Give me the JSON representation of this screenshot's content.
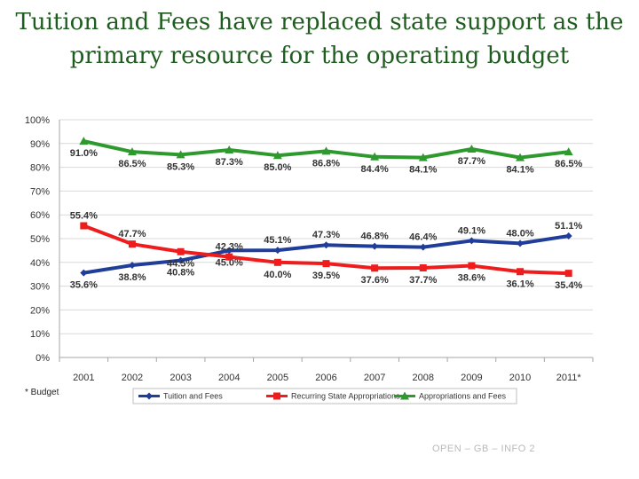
{
  "slide": {
    "title_line1": "Tuition and Fees have replaced state support as the",
    "title_line2": "primary resource for the operating budget",
    "footnote": "* Budget",
    "footer": "OPEN – GB – INFO 2"
  },
  "colors": {
    "tuition": "#1f3d99",
    "state": "#ee1c1c",
    "approp": "#2e9a2e",
    "grid": "#d9d9d9",
    "title": "#1f5c1f"
  },
  "chart_data": {
    "type": "line",
    "categories": [
      "2001",
      "2002",
      "2003",
      "2004",
      "2005",
      "2006",
      "2007",
      "2008",
      "2009",
      "2010",
      "2011*"
    ],
    "y_ticks": [
      "0%",
      "10%",
      "20%",
      "30%",
      "40%",
      "50%",
      "60%",
      "70%",
      "80%",
      "90%",
      "100%"
    ],
    "ylim": [
      0,
      100
    ],
    "grid": true,
    "legend_position": "bottom",
    "series": [
      {
        "key": "tuition",
        "name": "Tuition and Fees",
        "marker": "diamond",
        "values": [
          35.6,
          38.8,
          40.8,
          45.0,
          45.1,
          47.3,
          46.8,
          46.4,
          49.1,
          48.0,
          51.1
        ],
        "labels": [
          "35.6%",
          "38.8%",
          "40.8%",
          "45.0%",
          "45.1%",
          "47.3%",
          "46.8%",
          "46.4%",
          "49.1%",
          "48.0%",
          "51.1%"
        ],
        "label_pos": [
          "below",
          "below",
          "below",
          "below",
          "above",
          "above",
          "above",
          "above",
          "above",
          "above",
          "above"
        ]
      },
      {
        "key": "state",
        "name": "Recurring State Appropriations",
        "marker": "square",
        "values": [
          55.4,
          47.7,
          44.5,
          42.3,
          40.0,
          39.5,
          37.6,
          37.7,
          38.6,
          36.1,
          35.4
        ],
        "labels": [
          "55.4%",
          "47.7%",
          "44.5%",
          "42.3%",
          "40.0%",
          "39.5%",
          "37.6%",
          "37.7%",
          "38.6%",
          "36.1%",
          "35.4%"
        ],
        "label_pos": [
          "above",
          "above",
          "below",
          "above",
          "below",
          "below",
          "below",
          "below",
          "below",
          "below",
          "below"
        ]
      },
      {
        "key": "approp",
        "name": "Appropriations and Fees",
        "marker": "triangle",
        "values": [
          91.0,
          86.5,
          85.3,
          87.3,
          85.0,
          86.8,
          84.4,
          84.1,
          87.7,
          84.1,
          86.5
        ],
        "labels": [
          "91.0%",
          "86.5%",
          "85.3%",
          "87.3%",
          "85.0%",
          "86.8%",
          "84.4%",
          "84.1%",
          "87.7%",
          "84.1%",
          "86.5%"
        ],
        "label_pos": [
          "below",
          "below",
          "below",
          "below",
          "below",
          "below",
          "below",
          "below",
          "below",
          "below",
          "below"
        ]
      }
    ]
  }
}
